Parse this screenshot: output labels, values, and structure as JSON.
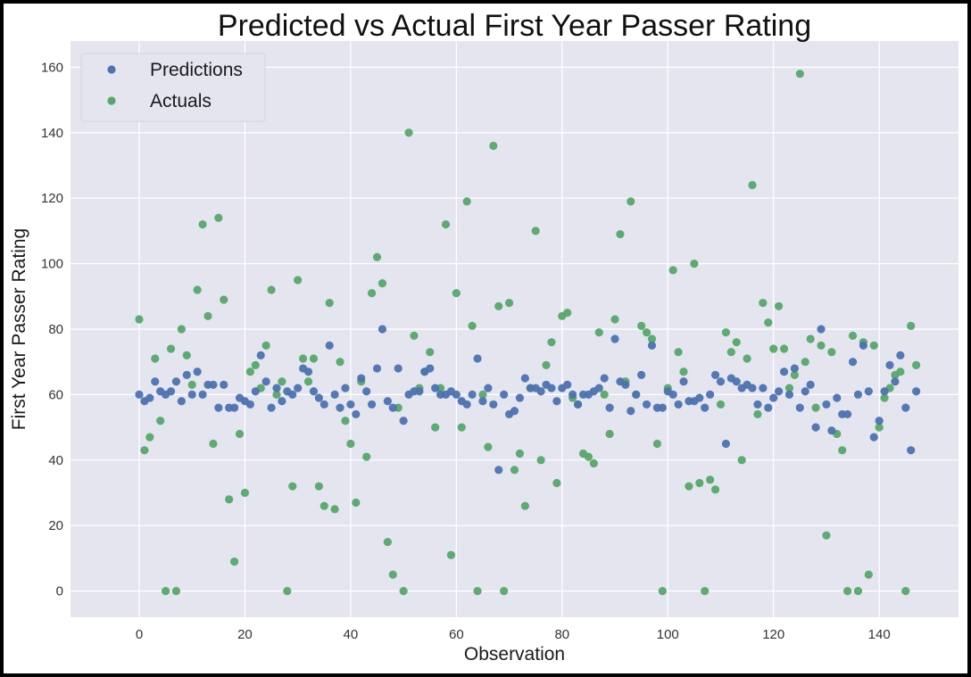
{
  "chart_data": {
    "type": "scatter",
    "title": "Predicted vs Actual First Year Passer Rating",
    "xlabel": "Observation",
    "ylabel": "First Year Passer Rating",
    "xlim": [
      -13,
      155
    ],
    "ylim": [
      -8,
      168
    ],
    "xticks": [
      0,
      20,
      40,
      60,
      80,
      100,
      120,
      140
    ],
    "yticks": [
      0,
      20,
      40,
      60,
      80,
      100,
      120,
      140,
      160
    ],
    "grid": true,
    "legend_position": "top-left",
    "colors": {
      "plot_bg": "#e5e5f0",
      "grid": "#ffffff",
      "predictions": "#4c72b0",
      "actuals": "#55a868"
    },
    "series": [
      {
        "name": "Predictions",
        "x": [
          0,
          1,
          2,
          3,
          4,
          5,
          6,
          7,
          8,
          9,
          10,
          11,
          12,
          13,
          14,
          15,
          16,
          17,
          18,
          19,
          20,
          21,
          22,
          23,
          24,
          25,
          26,
          27,
          28,
          29,
          30,
          31,
          32,
          33,
          34,
          35,
          36,
          37,
          38,
          39,
          40,
          41,
          42,
          43,
          44,
          45,
          46,
          47,
          48,
          49,
          50,
          51,
          52,
          53,
          54,
          55,
          56,
          57,
          58,
          59,
          60,
          61,
          62,
          63,
          64,
          65,
          66,
          67,
          68,
          69,
          70,
          71,
          72,
          73,
          74,
          75,
          76,
          77,
          78,
          79,
          80,
          81,
          82,
          83,
          84,
          85,
          86,
          87,
          88,
          89,
          90,
          91,
          92,
          93,
          94,
          95,
          96,
          97,
          98,
          99,
          100,
          101,
          102,
          103,
          104,
          105,
          106,
          107,
          108,
          109,
          110,
          111,
          112,
          113,
          114,
          115,
          116,
          117,
          118,
          119,
          120,
          121,
          122,
          123,
          124,
          125,
          126,
          127,
          128,
          129,
          130,
          131,
          132,
          133,
          134,
          135,
          136,
          137,
          138,
          139,
          140,
          141,
          142,
          143,
          144,
          145,
          146,
          147
        ],
        "y": [
          60,
          58,
          59,
          64,
          61,
          60,
          61,
          64,
          58,
          66,
          60,
          67,
          60,
          63,
          63,
          56,
          63,
          56,
          56,
          59,
          58,
          57,
          61,
          72,
          64,
          56,
          62,
          58,
          61,
          60,
          62,
          68,
          67,
          61,
          59,
          57,
          75,
          60,
          56,
          62,
          57,
          54,
          65,
          61,
          57,
          68,
          80,
          58,
          56,
          68,
          52,
          60,
          61,
          61,
          67,
          68,
          62,
          60,
          60,
          61,
          60,
          58,
          57,
          60,
          71,
          58,
          62,
          57,
          37,
          60,
          54,
          55,
          59,
          65,
          62,
          62,
          61,
          63,
          62,
          58,
          62,
          63,
          60,
          57,
          60,
          60,
          61,
          62,
          65,
          56,
          77,
          64,
          63,
          55,
          60,
          66,
          57,
          75,
          56,
          56,
          61,
          60,
          57,
          64,
          58,
          58,
          59,
          56,
          60,
          66,
          64,
          45,
          65,
          64,
          62,
          63,
          62,
          57,
          62,
          56,
          59,
          61,
          67,
          60,
          68,
          56,
          61,
          63,
          50,
          80,
          57,
          49,
          59,
          54,
          54,
          70,
          60,
          75,
          61,
          47,
          52,
          61,
          69,
          64,
          72,
          56,
          43,
          61
        ]
      },
      {
        "name": "Actuals",
        "x": [
          0,
          1,
          2,
          3,
          4,
          5,
          6,
          7,
          8,
          9,
          10,
          11,
          12,
          13,
          14,
          15,
          16,
          17,
          18,
          19,
          20,
          21,
          22,
          23,
          24,
          25,
          26,
          27,
          28,
          29,
          30,
          31,
          32,
          33,
          34,
          35,
          36,
          37,
          38,
          39,
          40,
          41,
          42,
          43,
          44,
          45,
          46,
          47,
          48,
          49,
          50,
          51,
          52,
          53,
          54,
          55,
          56,
          57,
          58,
          59,
          60,
          61,
          62,
          63,
          64,
          65,
          66,
          67,
          68,
          69,
          70,
          71,
          72,
          73,
          74,
          75,
          76,
          77,
          78,
          79,
          80,
          81,
          82,
          83,
          84,
          85,
          86,
          87,
          88,
          89,
          90,
          91,
          92,
          93,
          94,
          95,
          96,
          97,
          98,
          99,
          100,
          101,
          102,
          103,
          104,
          105,
          106,
          107,
          108,
          109,
          110,
          111,
          112,
          113,
          114,
          115,
          116,
          117,
          118,
          119,
          120,
          121,
          122,
          123,
          124,
          125,
          126,
          127,
          128,
          129,
          130,
          131,
          132,
          133,
          134,
          135,
          136,
          137,
          138,
          139,
          140,
          141,
          142,
          143,
          144,
          145,
          146,
          147
        ],
        "y": [
          83,
          43,
          47,
          71,
          52,
          0,
          74,
          0,
          80,
          72,
          63,
          92,
          112,
          84,
          45,
          114,
          89,
          28,
          9,
          48,
          30,
          67,
          69,
          62,
          75,
          92,
          60,
          64,
          0,
          32,
          95,
          71,
          64,
          71,
          32,
          26,
          88,
          25,
          70,
          52,
          45,
          27,
          64,
          41,
          91,
          102,
          94,
          15,
          5,
          56,
          0,
          140,
          78,
          62,
          67,
          73,
          50,
          62,
          112,
          11,
          91,
          50,
          119,
          81,
          0,
          60,
          44,
          136,
          87,
          0,
          88,
          37,
          42,
          26,
          62,
          110,
          40,
          69,
          76,
          33,
          84,
          85,
          59,
          57,
          42,
          41,
          39,
          79,
          60,
          48,
          83,
          109,
          64,
          119,
          60,
          81,
          79,
          77,
          45,
          0,
          62,
          98,
          73,
          67,
          32,
          100,
          33,
          0,
          34,
          31,
          57,
          79,
          73,
          76,
          40,
          71,
          124,
          54,
          88,
          82,
          74,
          87,
          74,
          62,
          66,
          158,
          70,
          77,
          56,
          75,
          17,
          73,
          48,
          43,
          0,
          78,
          0,
          76,
          5,
          75,
          50,
          59,
          62,
          66,
          67,
          0,
          81,
          69
        ]
      }
    ]
  }
}
